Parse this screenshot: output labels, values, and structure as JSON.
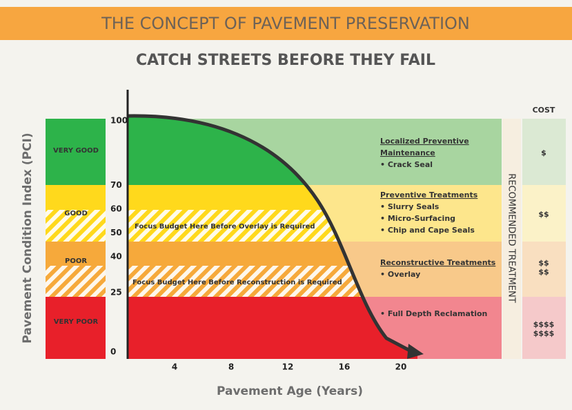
{
  "header": {
    "title": "THE CONCEPT OF PAVEMENT PRESERVATION"
  },
  "subtitle": "CATCH STREETS BEFORE THEY FAIL",
  "y_axis": {
    "label": "Pavement Condition Index (PCI)",
    "ticks": [
      100,
      70,
      60,
      50,
      40,
      25,
      0
    ]
  },
  "x_axis": {
    "label": "Pavement Age (Years)",
    "ticks": [
      4,
      8,
      12,
      16,
      20
    ]
  },
  "conditions": [
    "VERY GOOD",
    "GOOD",
    "POOR",
    "VERY POOR"
  ],
  "focus_notes": [
    "Focus Budget Here Before Overlay is Required",
    "Focus Budget Here Before Reconstruction is Required"
  ],
  "treatments": [
    {
      "heading": [
        "Localized Preventive",
        "Maintenance"
      ],
      "items": [
        "• Crack Seal"
      ]
    },
    {
      "heading": [
        "Preventive Treatments"
      ],
      "items": [
        "• Slurry Seals",
        "• Micro-Surfacing",
        "• Chip and Cape Seals"
      ]
    },
    {
      "heading": [
        "Reconstructive Treatments"
      ],
      "items": [
        "• Overlay"
      ]
    },
    {
      "items": [
        "• Full Depth Reclamation"
      ]
    }
  ],
  "side_label": "RECOMMENDED TREATMENT",
  "cost": {
    "heading": "COST",
    "levels": [
      [
        "$"
      ],
      [
        "$$"
      ],
      [
        "$$",
        "$$"
      ],
      [
        "$$$$",
        "$$$$"
      ]
    ]
  }
}
